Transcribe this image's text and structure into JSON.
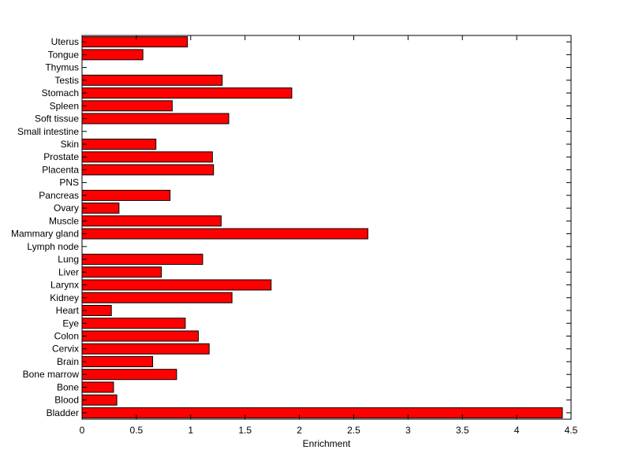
{
  "chart_data": {
    "type": "bar",
    "orientation": "horizontal",
    "title": "",
    "xlabel": "Enrichment",
    "ylabel": "",
    "xlim": [
      0,
      4.5
    ],
    "x_ticks": [
      0,
      0.5,
      1,
      1.5,
      2,
      2.5,
      3,
      3.5,
      4,
      4.5
    ],
    "x_tick_labels": [
      "0",
      "0.5",
      "1",
      "1.5",
      "2",
      "2.5",
      "3",
      "3.5",
      "4",
      "4.5"
    ],
    "grid": false,
    "legend": false,
    "bar_color": "#ff0000",
    "bar_edge_color": "#000000",
    "categories": [
      "Bladder",
      "Blood",
      "Bone",
      "Bone marrow",
      "Brain",
      "Cervix",
      "Colon",
      "Eye",
      "Heart",
      "Kidney",
      "Larynx",
      "Liver",
      "Lung",
      "Lymph node",
      "Mammary gland",
      "Muscle",
      "Ovary",
      "Pancreas",
      "PNS",
      "Placenta",
      "Prostate",
      "Skin",
      "Small intestine",
      "Soft tissue",
      "Spleen",
      "Stomach",
      "Testis",
      "Thymus",
      "Tongue",
      "Uterus"
    ],
    "values": [
      4.42,
      0.32,
      0.29,
      0.87,
      0.65,
      1.17,
      1.07,
      0.95,
      0.27,
      1.38,
      1.74,
      0.73,
      1.11,
      0,
      2.63,
      1.28,
      0.34,
      0.81,
      0,
      1.21,
      1.2,
      0.68,
      0,
      1.35,
      0.83,
      1.93,
      1.29,
      0,
      0.56,
      0.97
    ]
  }
}
